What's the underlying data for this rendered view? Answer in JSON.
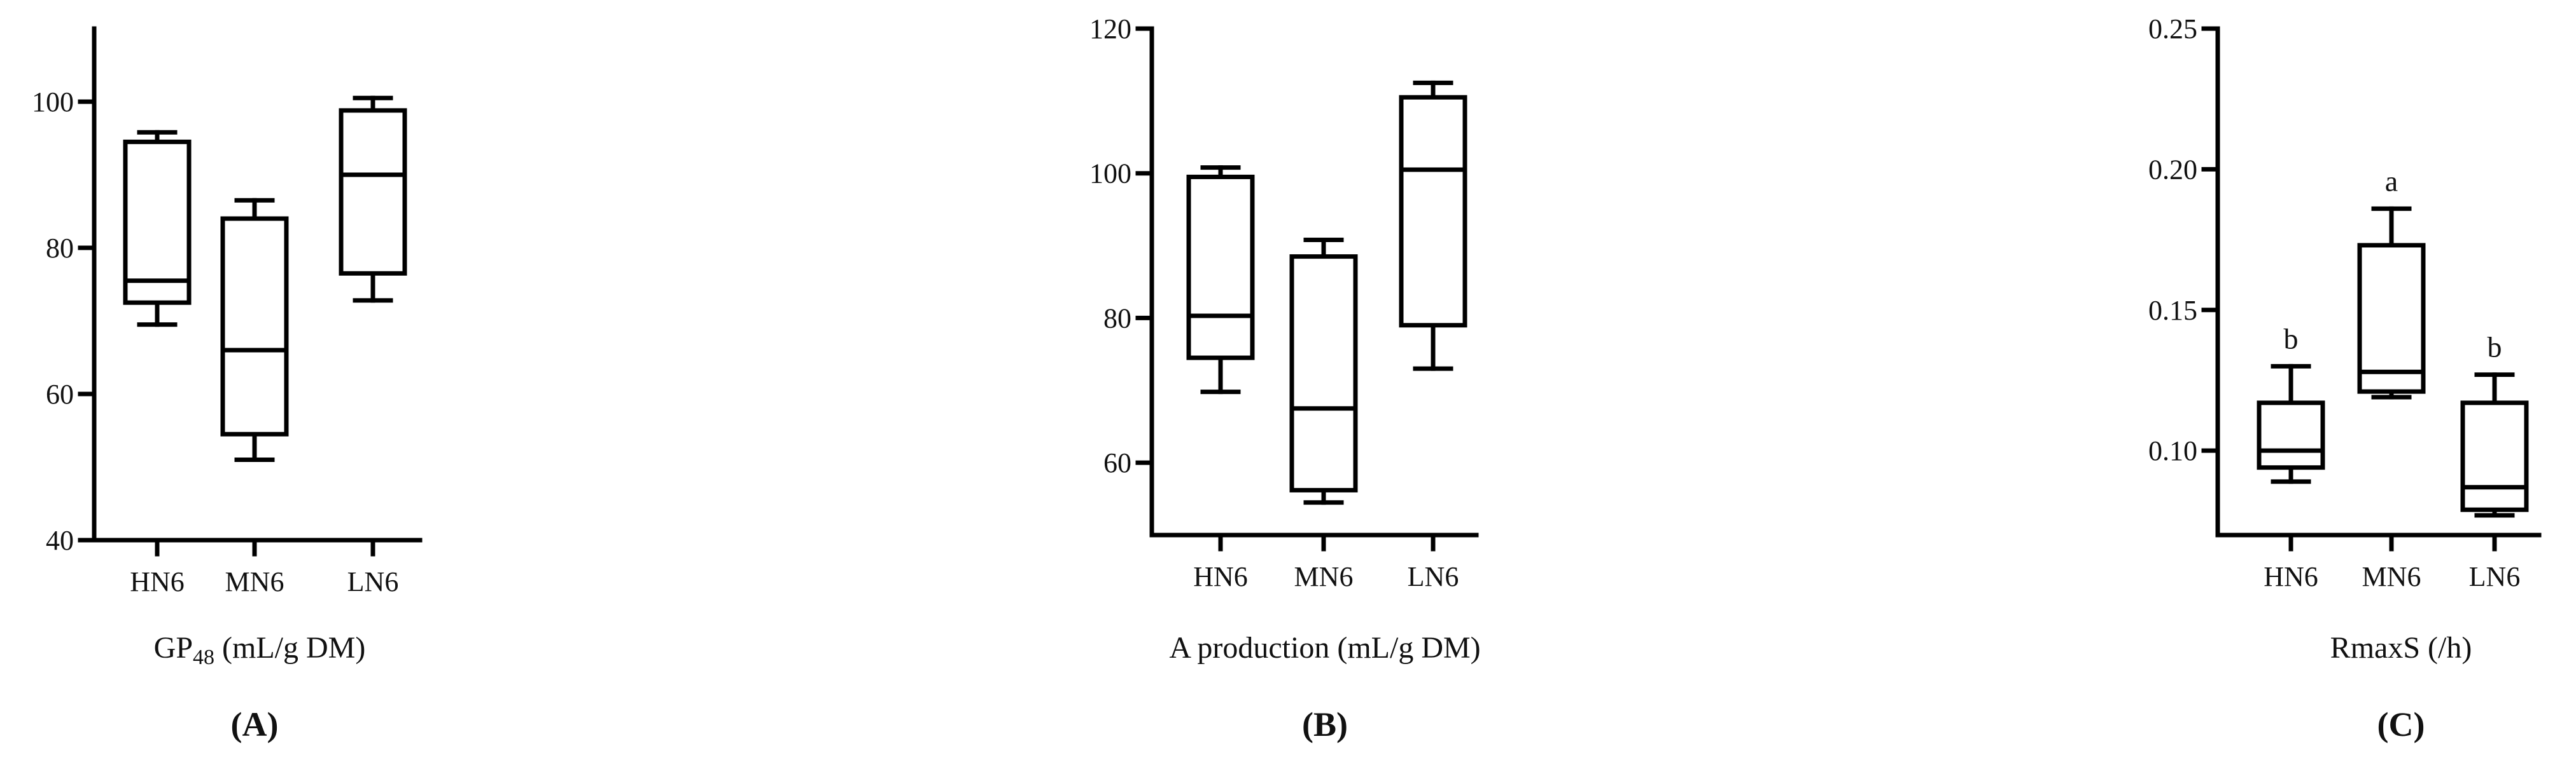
{
  "chart_data": [
    {
      "type": "box",
      "panel_label": "(A)",
      "xlabel_main": "GP",
      "xlabel_sub": "48",
      "xlabel_rest": " (mL/g DM)",
      "ylabel": "",
      "ylim": [
        40,
        110
      ],
      "yticks": [
        40,
        60,
        80,
        100
      ],
      "categories": [
        "HN6",
        "MN6",
        "LN6"
      ],
      "boxes": [
        {
          "min": 69.5,
          "q1": 72.5,
          "median": 75.5,
          "q3": 94.5,
          "max": 95.8,
          "letter": ""
        },
        {
          "min": 51,
          "q1": 54.5,
          "median": 66,
          "q3": 84,
          "max": 86.5,
          "letter": ""
        },
        {
          "min": 72.8,
          "q1": 76.5,
          "median": 90,
          "q3": 98.8,
          "max": 100.5,
          "letter": ""
        }
      ]
    },
    {
      "type": "box",
      "panel_label": "(B)",
      "xlabel_main": "A production (mL/g DM)",
      "xlabel_sub": "",
      "xlabel_rest": "",
      "ylabel": "",
      "ylim": [
        50,
        120
      ],
      "yticks": [
        60,
        80,
        100,
        120
      ],
      "categories": [
        "HN6",
        "MN6",
        "LN6"
      ],
      "boxes": [
        {
          "min": 69.8,
          "q1": 74.5,
          "median": 80.3,
          "q3": 99.5,
          "max": 100.8,
          "letter": ""
        },
        {
          "min": 54.5,
          "q1": 56.2,
          "median": 67.5,
          "q3": 88.5,
          "max": 90.8,
          "letter": ""
        },
        {
          "min": 73,
          "q1": 79,
          "median": 100.5,
          "q3": 110.5,
          "max": 112.5,
          "letter": ""
        }
      ]
    },
    {
      "type": "box",
      "panel_label": "(C)",
      "xlabel_main": "RmaxS (/h)",
      "xlabel_sub": "",
      "xlabel_rest": "",
      "ylabel": "",
      "ylim": [
        0.07,
        0.25
      ],
      "yticks": [
        0.1,
        0.15,
        0.2,
        0.25
      ],
      "ytick_labels": [
        "0.10",
        "0.15",
        "0.20",
        "0.25"
      ],
      "categories": [
        "HN6",
        "MN6",
        "LN6"
      ],
      "boxes": [
        {
          "min": 0.089,
          "q1": 0.094,
          "median": 0.1,
          "q3": 0.117,
          "max": 0.13,
          "letter": "b"
        },
        {
          "min": 0.119,
          "q1": 0.121,
          "median": 0.128,
          "q3": 0.173,
          "max": 0.186,
          "letter": "a"
        },
        {
          "min": 0.077,
          "q1": 0.079,
          "median": 0.087,
          "q3": 0.117,
          "max": 0.127,
          "letter": "b"
        }
      ]
    }
  ]
}
